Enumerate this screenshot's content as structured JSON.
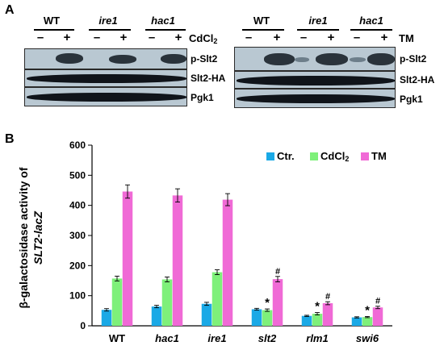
{
  "panel_a": {
    "letter": "A",
    "left": {
      "genotypes": [
        "WT",
        "ire1",
        "hac1"
      ],
      "signs": [
        "–",
        "+",
        "–",
        "+",
        "–",
        "+"
      ],
      "treatment": "CdCl",
      "treatment_sub": "2",
      "rows": [
        "p-Slt2",
        "Slt2-HA",
        "Pgk1"
      ]
    },
    "right": {
      "genotypes": [
        "WT",
        "ire1",
        "hac1"
      ],
      "signs": [
        "–",
        "+",
        "–",
        "+",
        "–",
        "+"
      ],
      "treatment": "TM",
      "rows": [
        "p-Slt2",
        "Slt2-HA",
        "Pgk1"
      ]
    }
  },
  "panel_b": {
    "letter": "B"
  },
  "chart_data": {
    "type": "bar",
    "ylabel_line1": "β-galactosidase activity of",
    "ylabel_line2": "SLT2-lacZ",
    "ylim": [
      0,
      600
    ],
    "yticks": [
      "0",
      "100",
      "200",
      "300",
      "400",
      "500",
      "600"
    ],
    "categories": [
      "WT",
      "hac1",
      "ire1",
      "slt2",
      "rlm1",
      "swi6"
    ],
    "category_italic": [
      false,
      true,
      true,
      true,
      true,
      true
    ],
    "legend_position": "top-right",
    "series": [
      {
        "name": "Ctr.",
        "color": "#1aa9e6",
        "values": [
          53,
          64,
          73,
          55,
          33,
          28
        ],
        "errors": [
          4,
          4,
          5,
          3,
          2,
          2
        ]
      },
      {
        "name": "CdCl2",
        "name_main": "CdCl",
        "name_sub": "2",
        "color": "#7ef07a",
        "values": [
          157,
          154,
          178,
          52,
          40,
          29
        ],
        "errors": [
          8,
          8,
          8,
          4,
          4,
          2
        ]
      },
      {
        "name": "TM",
        "color": "#f06ad6",
        "values": [
          446,
          433,
          419,
          155,
          75,
          61
        ],
        "errors": [
          22,
          22,
          20,
          9,
          5,
          4
        ]
      }
    ],
    "annotations": [
      {
        "category": "slt2",
        "series": "CdCl2",
        "text": "*"
      },
      {
        "category": "slt2",
        "series": "TM",
        "text": "#"
      },
      {
        "category": "rlm1",
        "series": "CdCl2",
        "text": "*"
      },
      {
        "category": "rlm1",
        "series": "TM",
        "text": "#"
      },
      {
        "category": "swi6",
        "series": "CdCl2",
        "text": "*"
      },
      {
        "category": "swi6",
        "series": "TM",
        "text": "#"
      }
    ]
  }
}
